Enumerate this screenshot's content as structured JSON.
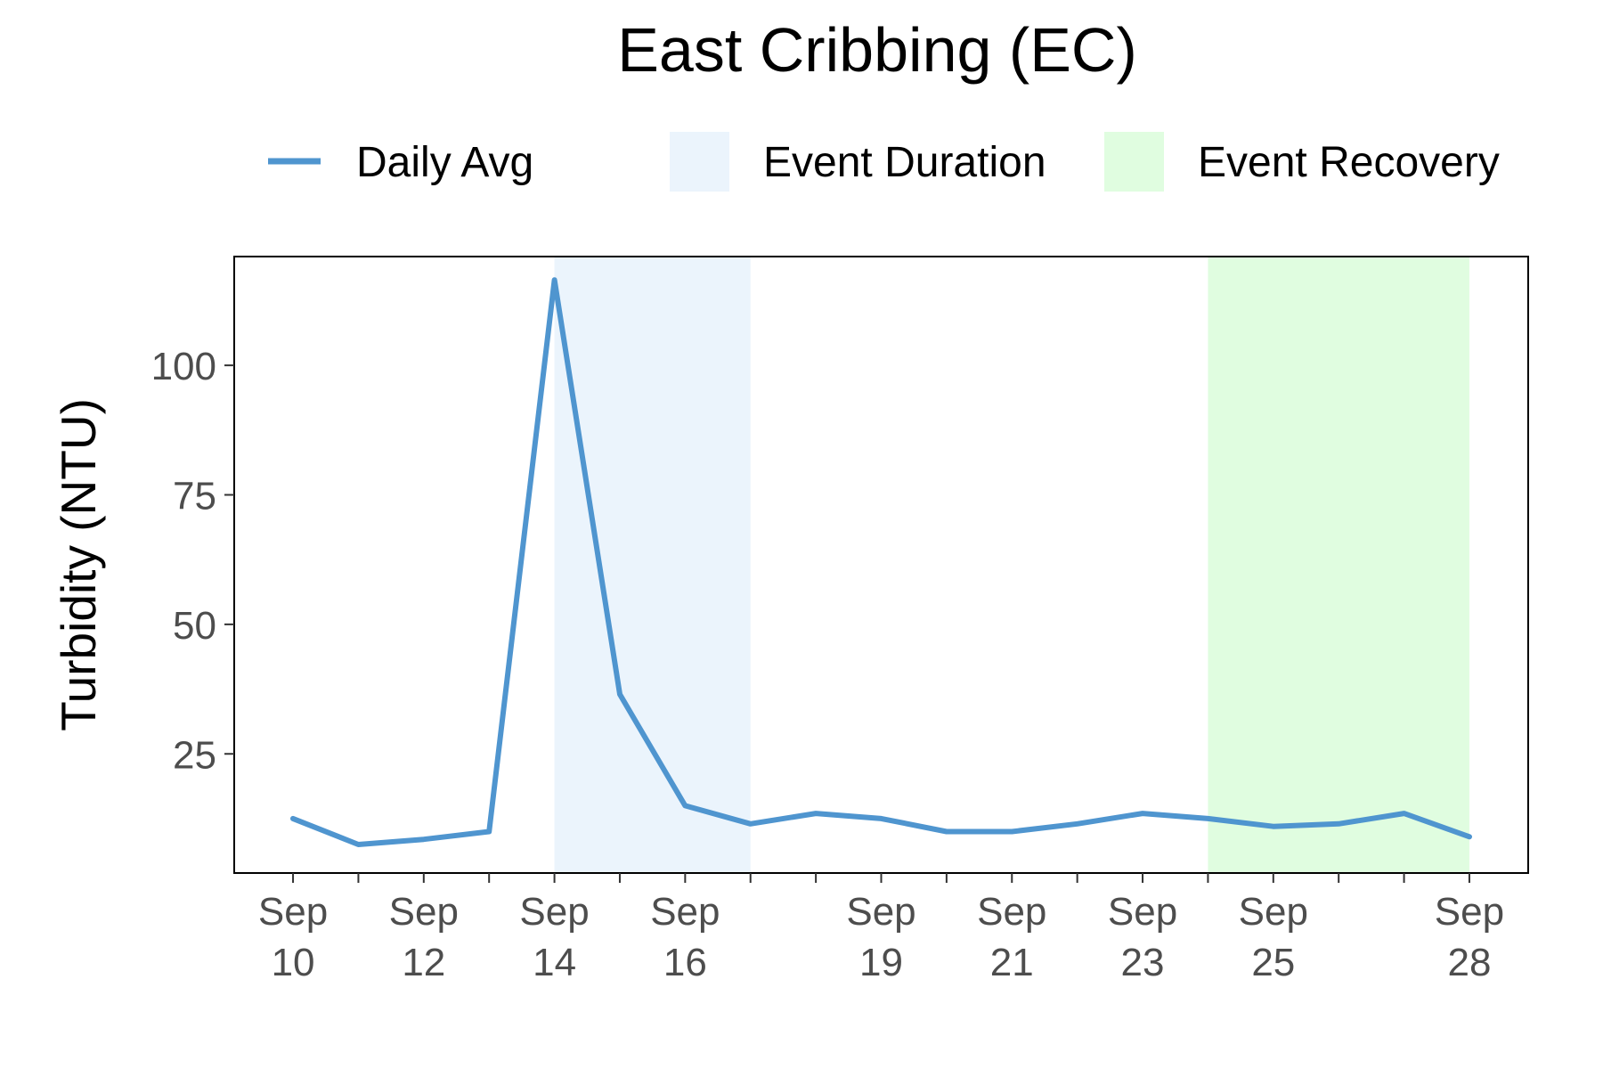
{
  "chart_data": {
    "type": "line",
    "title": "East Cribbing (EC)",
    "ylabel": "Turbidity (NTU)",
    "xlabel": "",
    "x": [
      "Sep 10",
      "Sep 11",
      "Sep 12",
      "Sep 13",
      "Sep 14",
      "Sep 15",
      "Sep 16",
      "Sep 17",
      "Sep 18",
      "Sep 19",
      "Sep 20",
      "Sep 21",
      "Sep 22",
      "Sep 23",
      "Sep 24",
      "Sep 25",
      "Sep 26",
      "Sep 27",
      "Sep 28"
    ],
    "x_index": [
      10,
      11,
      12,
      13,
      14,
      15,
      16,
      17,
      18,
      19,
      20,
      21,
      22,
      23,
      24,
      25,
      26,
      27,
      28
    ],
    "series": [
      {
        "name": "Daily Avg",
        "color": "#4f95cf",
        "values": [
          12.5,
          7.5,
          8.5,
          10.0,
          116.5,
          36.5,
          15.0,
          11.5,
          13.5,
          12.5,
          10.0,
          10.0,
          11.5,
          13.5,
          12.5,
          11.0,
          11.5,
          13.5,
          9.0
        ]
      }
    ],
    "bands": [
      {
        "name": "Event Duration",
        "start": 14,
        "end": 17,
        "color": "#ebf4fc"
      },
      {
        "name": "Event Recovery",
        "start": 24,
        "end": 28,
        "color": "#e0fde0"
      }
    ],
    "x_ticks": [
      10,
      11,
      12,
      13,
      14,
      15,
      16,
      17,
      18,
      19,
      20,
      21,
      22,
      23,
      24,
      25,
      26,
      27,
      28
    ],
    "x_tick_labels": [
      {
        "at": 10,
        "line1": "Sep",
        "line2": "10"
      },
      {
        "at": 12,
        "line1": "Sep",
        "line2": "12"
      },
      {
        "at": 14,
        "line1": "Sep",
        "line2": "14"
      },
      {
        "at": 16,
        "line1": "Sep",
        "line2": "16"
      },
      {
        "at": 19,
        "line1": "Sep",
        "line2": "19"
      },
      {
        "at": 21,
        "line1": "Sep",
        "line2": "21"
      },
      {
        "at": 23,
        "line1": "Sep",
        "line2": "23"
      },
      {
        "at": 25,
        "line1": "Sep",
        "line2": "25"
      },
      {
        "at": 28,
        "line1": "Sep",
        "line2": "28"
      }
    ],
    "y_ticks": [
      25,
      50,
      75,
      100
    ],
    "xlim": [
      9.1,
      28.9
    ],
    "ylim": [
      2.0,
      121.0
    ],
    "grid": false,
    "legend_position": "top",
    "legend": [
      {
        "label": "Daily Avg",
        "kind": "line",
        "color": "#4f95cf"
      },
      {
        "label": "Event Duration",
        "kind": "fill",
        "color": "#ebf4fc"
      },
      {
        "label": "Event Recovery",
        "kind": "fill",
        "color": "#e0fde0"
      }
    ]
  }
}
